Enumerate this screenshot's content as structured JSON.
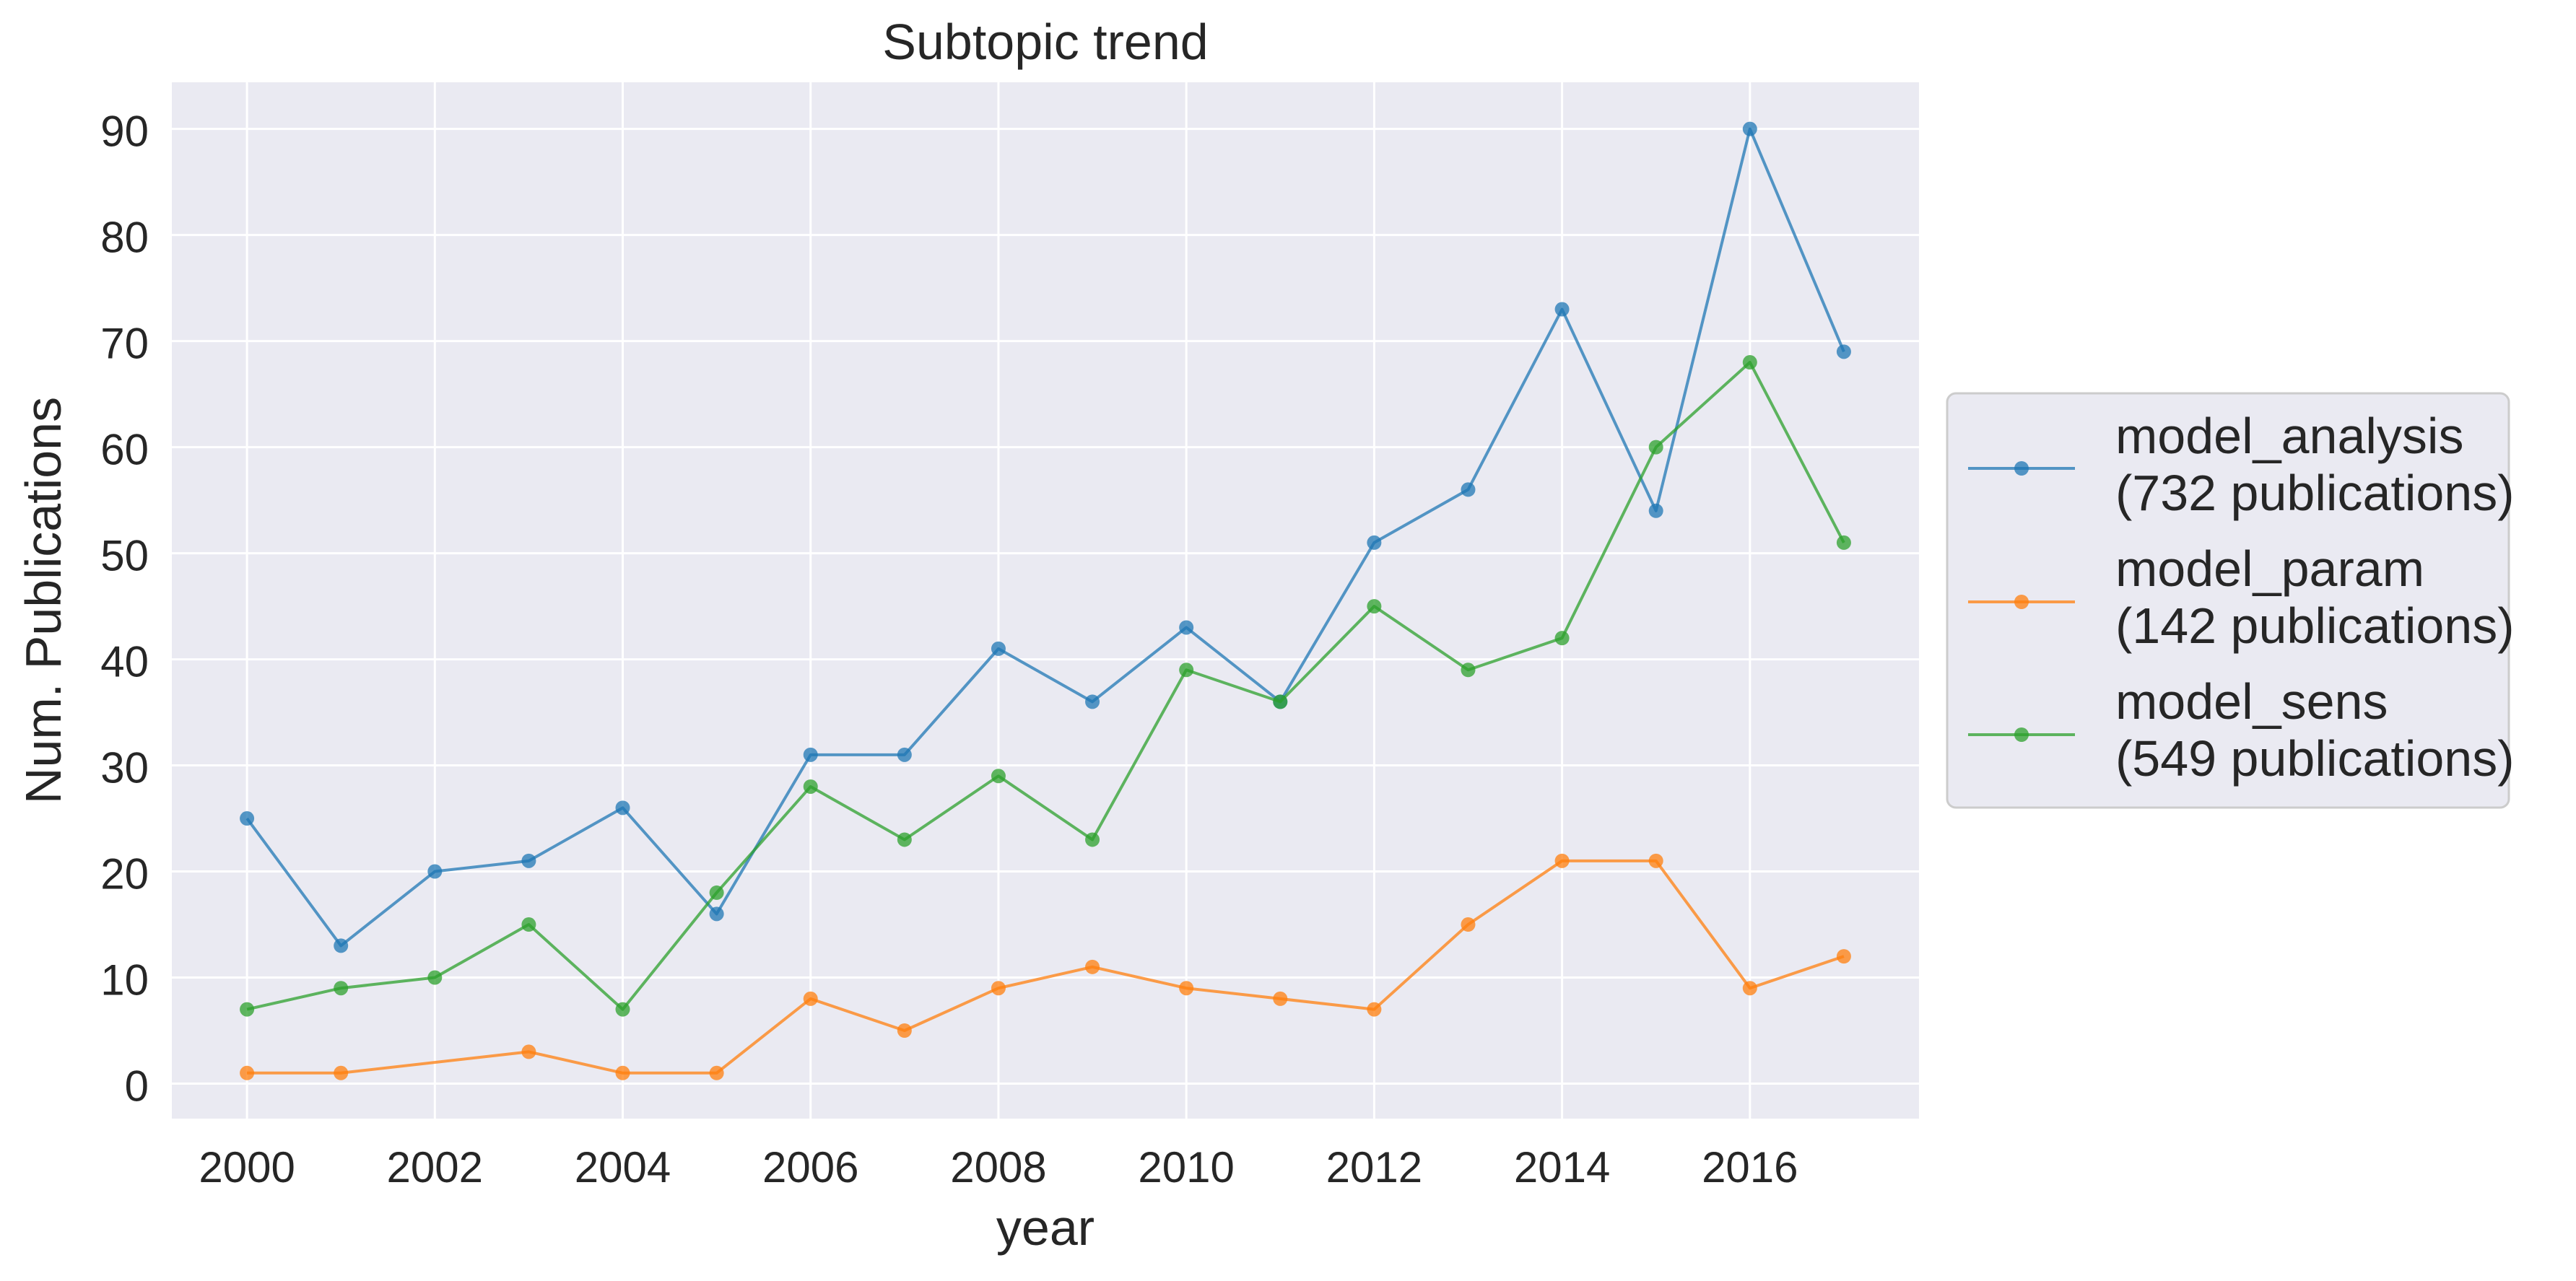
{
  "chart_data": {
    "type": "line",
    "title": "Subtopic trend",
    "xlabel": "year",
    "ylabel": "Num. Publications",
    "x": [
      2000,
      2001,
      2002,
      2003,
      2004,
      2005,
      2006,
      2007,
      2008,
      2009,
      2010,
      2011,
      2012,
      2013,
      2014,
      2015,
      2016,
      2017
    ],
    "xticks": [
      2000,
      2002,
      2004,
      2006,
      2008,
      2010,
      2012,
      2014,
      2016
    ],
    "yticks": [
      0,
      10,
      20,
      30,
      40,
      50,
      60,
      70,
      80,
      90
    ],
    "xlim": [
      1999.2,
      2017.8
    ],
    "ylim": [
      -3.3,
      94.4
    ],
    "grid": true,
    "legend_position": "outside-right",
    "series": [
      {
        "name": "model_analysis",
        "label_line2": "(732 publications)",
        "color": "#1f77b4",
        "x": [
          2000,
          2001,
          2002,
          2003,
          2004,
          2005,
          2006,
          2007,
          2008,
          2009,
          2010,
          2011,
          2012,
          2013,
          2014,
          2015,
          2016,
          2017
        ],
        "values": [
          25,
          13,
          20,
          21,
          26,
          16,
          31,
          31,
          41,
          36,
          43,
          36,
          51,
          56,
          73,
          54,
          90,
          69
        ]
      },
      {
        "name": "model_param",
        "label_line2": "(142 publications)",
        "color": "#ff7f0e",
        "x": [
          2000,
          2001,
          2003,
          2004,
          2005,
          2006,
          2007,
          2008,
          2009,
          2010,
          2011,
          2012,
          2013,
          2014,
          2015,
          2016,
          2017
        ],
        "values": [
          1,
          1,
          3,
          1,
          1,
          8,
          5,
          9,
          11,
          9,
          8,
          7,
          15,
          21,
          21,
          9,
          12
        ]
      },
      {
        "name": "model_sens",
        "label_line2": "(549 publications)",
        "color": "#2ca02c",
        "x": [
          2000,
          2001,
          2002,
          2003,
          2004,
          2005,
          2006,
          2007,
          2008,
          2009,
          2010,
          2011,
          2012,
          2013,
          2014,
          2015,
          2016,
          2017
        ],
        "values": [
          7,
          9,
          10,
          15,
          7,
          18,
          28,
          23,
          29,
          23,
          39,
          36,
          45,
          39,
          42,
          60,
          68,
          51
        ]
      }
    ]
  }
}
